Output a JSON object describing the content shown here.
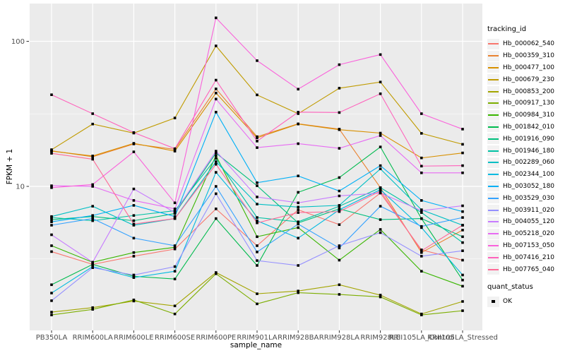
{
  "figure": {
    "legend": {
      "tracking_title": "tracking_id",
      "quant_title": "quant_status",
      "quant_ok_label": "OK"
    }
  },
  "chart_data": {
    "type": "line",
    "title": "",
    "xlabel": "sample_name",
    "ylabel": "FPKM + 1",
    "y_scale": "log10",
    "y_tick_labels": [
      "100",
      "10"
    ],
    "y_tick_values": [
      100,
      10
    ],
    "y_minor_gridlines": [
      31.623,
      3.1623
    ],
    "ylim": [
      1.0,
      181
    ],
    "grid": "white major and minor, gray panel",
    "legend_position": "right",
    "legend_title": "tracking_id",
    "point_legend": {
      "title": "quant_status",
      "items": [
        "OK"
      ]
    },
    "point_shape": "square",
    "point_color": "#000000",
    "panel_bg": "#EBEBEB",
    "grid_color": "#FFFFFF",
    "tick_color": "#333333",
    "tick_label_color": "#4D4D4D",
    "categories": [
      "PB350LA",
      "RRIM600LA",
      "RRIM600LE",
      "RRIM600SE",
      "RRIM600PE",
      "RRIM901LA",
      "RRIM928BA",
      "RRIM928LA",
      "RRIM928LE",
      "RRII105LA_Control",
      "RRII105LA_Stressed"
    ],
    "series": [
      {
        "name": "Hb_000062_540",
        "color": "#F8766D",
        "values": [
          3.55,
          2.9,
          3.3,
          3.7,
          7.0,
          3.9,
          6.9,
          5.45,
          9.0,
          3.65,
          3.1
        ]
      },
      {
        "name": "Hb_000359_310",
        "color": "#EA8331",
        "values": [
          17.6,
          16.0,
          19.6,
          18.0,
          47,
          22.0,
          27.0,
          24.8,
          9.8,
          3.5,
          5.0
        ]
      },
      {
        "name": "Hb_000477_100",
        "color": "#D89000",
        "values": [
          17.5,
          16.2,
          19.8,
          17.5,
          44,
          21.6,
          26.9,
          24.6,
          23.3,
          15.7,
          17.0
        ]
      },
      {
        "name": "Hb_000679_230",
        "color": "#C09B00",
        "values": [
          17.9,
          26.9,
          23.3,
          29.6,
          93,
          42.7,
          31.7,
          47.5,
          52.4,
          23.2,
          19.5
        ]
      },
      {
        "name": "Hb_000853_200",
        "color": "#A3A500",
        "values": [
          1.36,
          1.46,
          1.62,
          1.5,
          2.55,
          1.82,
          1.9,
          2.1,
          1.78,
          1.32,
          1.61
        ]
      },
      {
        "name": "Hb_000917_130",
        "color": "#7CAE00",
        "values": [
          1.3,
          1.42,
          1.65,
          1.32,
          2.5,
          1.55,
          1.85,
          1.8,
          1.73,
          1.3,
          1.39
        ]
      },
      {
        "name": "Hb_000984_310",
        "color": "#39B600",
        "values": [
          3.9,
          3.0,
          3.5,
          3.8,
          16.3,
          4.5,
          5.2,
          3.1,
          5.05,
          2.6,
          2.05
        ]
      },
      {
        "name": "Hb_001842_010",
        "color": "#00BB4E",
        "values": [
          2.1,
          2.9,
          2.4,
          2.3,
          6.0,
          2.85,
          9.1,
          11.5,
          18.7,
          6.0,
          2.26
        ]
      },
      {
        "name": "Hb_001916_090",
        "color": "#00BF7D",
        "values": [
          5.9,
          6.2,
          5.8,
          6.5,
          17.0,
          10.1,
          5.6,
          7.0,
          5.9,
          6.0,
          4.5
        ]
      },
      {
        "name": "Hb_001946_180",
        "color": "#00C1A3",
        "values": [
          6.1,
          5.8,
          6.3,
          6.8,
          15.6,
          6.1,
          5.7,
          7.3,
          9.8,
          6.6,
          4.1
        ]
      },
      {
        "name": "Hb_002289_060",
        "color": "#00BFC4",
        "values": [
          6.2,
          7.3,
          5.4,
          6.0,
          14.8,
          7.55,
          7.2,
          7.4,
          13.2,
          6.9,
          5.4
        ]
      },
      {
        "name": "Hb_002344_100",
        "color": "#00BAE0",
        "values": [
          1.84,
          2.8,
          2.35,
          2.6,
          12.5,
          5.8,
          4.4,
          6.9,
          9.5,
          5.2,
          2.45
        ]
      },
      {
        "name": "Hb_003052_180",
        "color": "#00B0F6",
        "values": [
          5.7,
          6.3,
          7.4,
          6.2,
          32.5,
          10.6,
          11.8,
          9.3,
          13.9,
          8.0,
          6.7
        ]
      },
      {
        "name": "Hb_003529_030",
        "color": "#35A2FF",
        "values": [
          5.4,
          6.0,
          4.4,
          3.9,
          10.0,
          3.53,
          5.5,
          3.76,
          7.3,
          5.3,
          6.1
        ]
      },
      {
        "name": "Hb_003911_020",
        "color": "#9590FF",
        "values": [
          1.63,
          2.75,
          2.45,
          2.8,
          8.9,
          3.08,
          2.85,
          3.9,
          4.8,
          3.3,
          3.6
        ]
      },
      {
        "name": "Hb_004055_120",
        "color": "#C77CFF",
        "values": [
          4.64,
          3.0,
          9.6,
          6.6,
          17.5,
          8.45,
          7.7,
          8.6,
          9.0,
          6.8,
          7.35
        ]
      },
      {
        "name": "Hb_005218_020",
        "color": "#E76BF3",
        "values": [
          10.1,
          10.0,
          8.0,
          7.0,
          40,
          18.5,
          19.7,
          18.3,
          22.4,
          12.4,
          12.4
        ]
      },
      {
        "name": "Hb_007153_050",
        "color": "#FA62DB",
        "values": [
          9.8,
          10.3,
          17.3,
          7.7,
          145,
          73.6,
          46.8,
          69,
          81,
          31.7,
          24.8
        ]
      },
      {
        "name": "Hb_007416_210",
        "color": "#FF62BC",
        "values": [
          42.8,
          31.7,
          23.5,
          18.2,
          54,
          20.5,
          32.5,
          32.3,
          43.5,
          13.8,
          13.9
        ]
      },
      {
        "name": "Hb_007765_040",
        "color": "#FF6A98",
        "values": [
          16.9,
          15.4,
          5.5,
          6.0,
          14.2,
          5.6,
          6.6,
          6.7,
          9.3,
          3.6,
          5.4
        ]
      }
    ]
  }
}
